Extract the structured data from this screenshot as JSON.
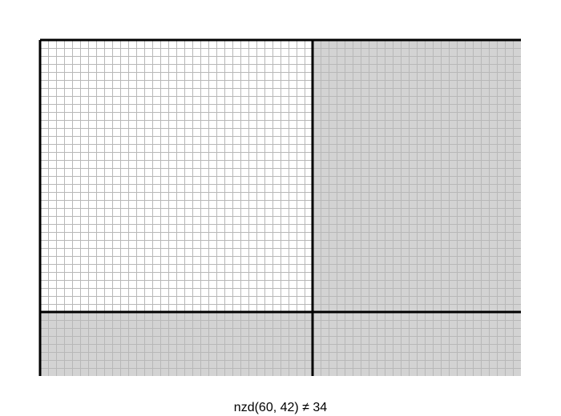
{
  "caption": "nzd(60, 42) ≠ 34"
}
